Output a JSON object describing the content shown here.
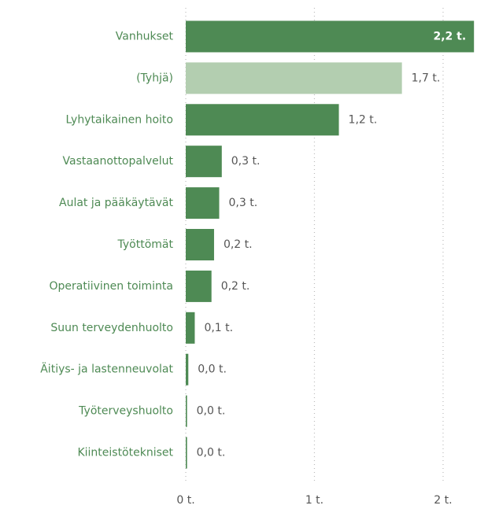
{
  "chart_data": {
    "type": "bar",
    "orientation": "horizontal",
    "categories": [
      "Vanhukset",
      "(Tyhjä)",
      "Lyhytaikainen hoito",
      "Vastaanottopalvelut",
      "Aulat ja pääkäytävät",
      "Työttömät",
      "Operatiivinen toiminta",
      "Suun terveydenhuolto",
      "Äitiys- ja lastenneuvolat",
      "Työterveyshuolto",
      "Kiinteistötekniset"
    ],
    "values": [
      2.24,
      1.68,
      1.19,
      0.28,
      0.26,
      0.22,
      0.2,
      0.07,
      0.02,
      0.01,
      0.01
    ],
    "value_labels": [
      "2,2 t.",
      "1,7 t.",
      "1,2 t.",
      "0,3 t.",
      "0,3 t.",
      "0,2 t.",
      "0,2 t.",
      "0,1 t.",
      "0,0 t.",
      "0,0 t.",
      "0,0 t."
    ],
    "colors": [
      "#4e8a54",
      "#b3ceb0",
      "#4e8a54",
      "#4e8a54",
      "#4e8a54",
      "#4e8a54",
      "#4e8a54",
      "#4e8a54",
      "#4e8a54",
      "#4e8a54",
      "#4e8a54"
    ],
    "xlim": [
      0,
      2.3
    ],
    "xticks": [
      {
        "value": 0,
        "label": "0 t."
      },
      {
        "value": 1,
        "label": "1 t."
      },
      {
        "value": 2,
        "label": "2 t."
      }
    ],
    "grid": true
  }
}
